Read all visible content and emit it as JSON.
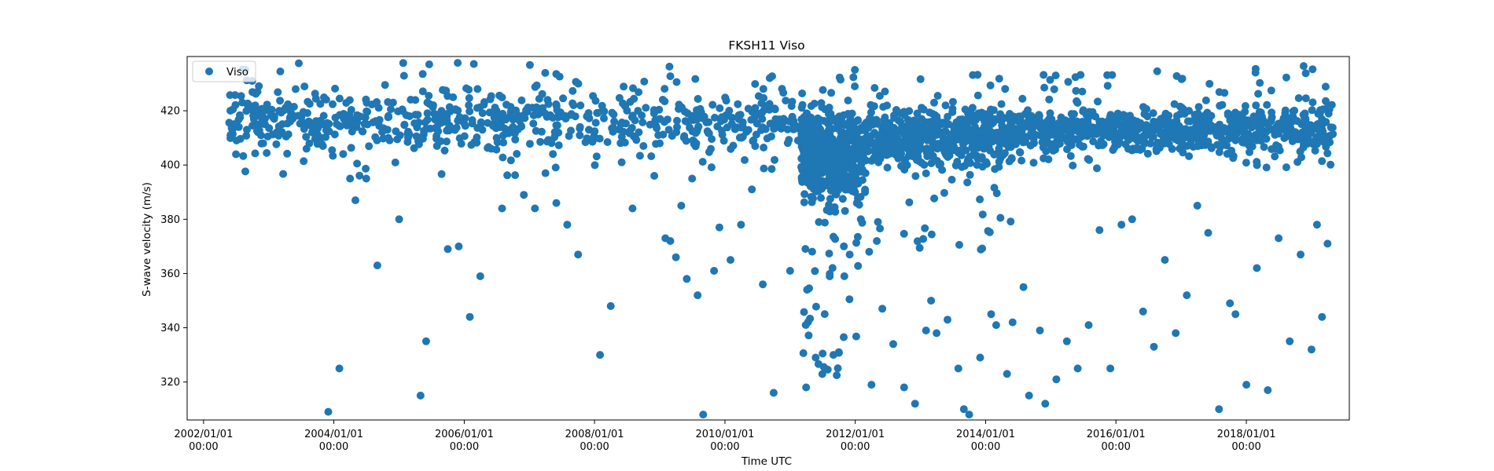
{
  "chart_data": {
    "type": "scatter",
    "title": "FKSH11 Viso",
    "xlabel": "Time UTC",
    "ylabel": "S-wave velocity (m/s)",
    "xlim": [
      "2001-10-01",
      "2019-08-01"
    ],
    "ylim": [
      306,
      440
    ],
    "yticks": [
      320,
      340,
      360,
      380,
      400,
      420
    ],
    "xticks": [
      {
        "date": "2002-01-01",
        "label": [
          "2002/01/01",
          "00:00"
        ]
      },
      {
        "date": "2004-01-01",
        "label": [
          "2004/01/01",
          "00:00"
        ]
      },
      {
        "date": "2006-01-01",
        "label": [
          "2006/01/01",
          "00:00"
        ]
      },
      {
        "date": "2008-01-01",
        "label": [
          "2008/01/01",
          "00:00"
        ]
      },
      {
        "date": "2010-01-01",
        "label": [
          "2010/01/01",
          "00:00"
        ]
      },
      {
        "date": "2012-01-01",
        "label": [
          "2012/01/01",
          "00:00"
        ]
      },
      {
        "date": "2014-01-01",
        "label": [
          "2014/01/01",
          "00:00"
        ]
      },
      {
        "date": "2016-01-01",
        "label": [
          "2016/01/01",
          "00:00"
        ]
      },
      {
        "date": "2018-01-01",
        "label": [
          "2018/01/01",
          "00:00"
        ]
      }
    ],
    "legend": {
      "position": "upper-left"
    },
    "grid": false,
    "series": [
      {
        "name": "Viso",
        "color": "#1f77b4",
        "points": [
          [
            "2002-06-01",
            411
          ],
          [
            "2002-07-01",
            415
          ],
          [
            "2002-09-01",
            413
          ],
          [
            "2002-10-01",
            431
          ],
          [
            "2002-12-01",
            408
          ],
          [
            "2003-02-01",
            417
          ],
          [
            "2003-03-01",
            420
          ],
          [
            "2003-05-01",
            416
          ],
          [
            "2003-06-01",
            428
          ],
          [
            "2003-08-01",
            406
          ],
          [
            "2003-09-01",
            412
          ],
          [
            "2003-11-01",
            407
          ],
          [
            "2003-12-01",
            309
          ],
          [
            "2004-02-01",
            325
          ],
          [
            "2004-04-01",
            395
          ],
          [
            "2004-05-01",
            387
          ],
          [
            "2004-07-01",
            395
          ],
          [
            "2004-09-01",
            363
          ],
          [
            "2004-11-01",
            410
          ],
          [
            "2005-01-01",
            380
          ],
          [
            "2005-03-01",
            418
          ],
          [
            "2005-05-01",
            315
          ],
          [
            "2005-06-01",
            335
          ],
          [
            "2005-08-01",
            407
          ],
          [
            "2005-10-01",
            369
          ],
          [
            "2005-12-01",
            370
          ],
          [
            "2006-02-01",
            344
          ],
          [
            "2006-04-01",
            359
          ],
          [
            "2006-06-01",
            406
          ],
          [
            "2006-08-01",
            384
          ],
          [
            "2006-10-01",
            414
          ],
          [
            "2006-12-01",
            389
          ],
          [
            "2007-02-01",
            384
          ],
          [
            "2007-04-01",
            397
          ],
          [
            "2007-06-01",
            386
          ],
          [
            "2007-08-01",
            378
          ],
          [
            "2007-10-01",
            367
          ],
          [
            "2007-12-01",
            413
          ],
          [
            "2008-02-01",
            330
          ],
          [
            "2008-04-01",
            348
          ],
          [
            "2008-06-01",
            401
          ],
          [
            "2008-08-01",
            384
          ],
          [
            "2008-10-01",
            407
          ],
          [
            "2008-12-01",
            396
          ],
          [
            "2009-02-01",
            373
          ],
          [
            "2009-03-01",
            372
          ],
          [
            "2009-04-01",
            366
          ],
          [
            "2009-05-01",
            385
          ],
          [
            "2009-06-01",
            358
          ],
          [
            "2009-07-01",
            395
          ],
          [
            "2009-08-01",
            352
          ],
          [
            "2009-09-01",
            308
          ],
          [
            "2009-11-01",
            361
          ],
          [
            "2009-12-01",
            377
          ],
          [
            "2010-02-01",
            365
          ],
          [
            "2010-04-01",
            378
          ],
          [
            "2010-06-01",
            391
          ],
          [
            "2010-08-01",
            356
          ],
          [
            "2010-10-01",
            316
          ],
          [
            "2011-01-01",
            361
          ],
          [
            "2011-04-01",
            318
          ],
          [
            "2011-07-01",
            405
          ],
          [
            "2011-09-01",
            330
          ],
          [
            "2011-10-01",
            331
          ],
          [
            "2011-11-01",
            359
          ],
          [
            "2011-12-01",
            367
          ],
          [
            "2012-02-01",
            380
          ],
          [
            "2012-04-01",
            319
          ],
          [
            "2012-05-01",
            372
          ],
          [
            "2012-06-01",
            347
          ],
          [
            "2012-08-01",
            334
          ],
          [
            "2012-10-01",
            318
          ],
          [
            "2012-12-01",
            312
          ],
          [
            "2013-02-01",
            339
          ],
          [
            "2013-03-01",
            350
          ],
          [
            "2013-04-01",
            338
          ],
          [
            "2013-06-01",
            343
          ],
          [
            "2013-08-01",
            325
          ],
          [
            "2013-09-01",
            310
          ],
          [
            "2013-10-01",
            308
          ],
          [
            "2013-12-01",
            329
          ],
          [
            "2014-02-01",
            345
          ],
          [
            "2014-03-01",
            341
          ],
          [
            "2014-05-01",
            323
          ],
          [
            "2014-06-01",
            342
          ],
          [
            "2014-08-01",
            355
          ],
          [
            "2014-09-01",
            315
          ],
          [
            "2014-11-01",
            339
          ],
          [
            "2014-12-01",
            312
          ],
          [
            "2015-02-01",
            321
          ],
          [
            "2015-04-01",
            335
          ],
          [
            "2015-06-01",
            325
          ],
          [
            "2015-08-01",
            341
          ],
          [
            "2015-10-01",
            376
          ],
          [
            "2015-12-01",
            325
          ],
          [
            "2016-02-01",
            378
          ],
          [
            "2016-04-01",
            380
          ],
          [
            "2016-06-01",
            346
          ],
          [
            "2016-08-01",
            333
          ],
          [
            "2016-10-01",
            365
          ],
          [
            "2016-12-01",
            338
          ],
          [
            "2017-02-01",
            352
          ],
          [
            "2017-04-01",
            385
          ],
          [
            "2017-06-01",
            375
          ],
          [
            "2017-08-01",
            310
          ],
          [
            "2017-10-01",
            349
          ],
          [
            "2017-11-01",
            345
          ],
          [
            "2018-01-01",
            319
          ],
          [
            "2018-03-01",
            362
          ],
          [
            "2018-05-01",
            317
          ],
          [
            "2018-07-01",
            373
          ],
          [
            "2018-09-01",
            335
          ],
          [
            "2018-11-01",
            367
          ],
          [
            "2019-01-01",
            332
          ],
          [
            "2019-02-01",
            378
          ],
          [
            "2019-03-01",
            344
          ],
          [
            "2019-04-01",
            371
          ]
        ],
        "clusters": [
          {
            "from": "2002-05-15",
            "to": "2011-03-01",
            "center": 416,
            "spread": 10,
            "count": 680,
            "extremes": [
              396,
              438
            ]
          },
          {
            "from": "2011-03-01",
            "to": "2012-03-01",
            "center": 404,
            "spread": 14,
            "count": 520,
            "extremes": [
              322,
              436
            ]
          },
          {
            "from": "2012-03-01",
            "to": "2014-06-01",
            "center": 410,
            "spread": 9,
            "count": 560,
            "extremes": [
              368,
              438
            ]
          },
          {
            "from": "2014-06-01",
            "to": "2019-05-01",
            "center": 413,
            "spread": 7,
            "count": 760,
            "extremes": [
              398,
              437
            ]
          }
        ]
      }
    ]
  }
}
